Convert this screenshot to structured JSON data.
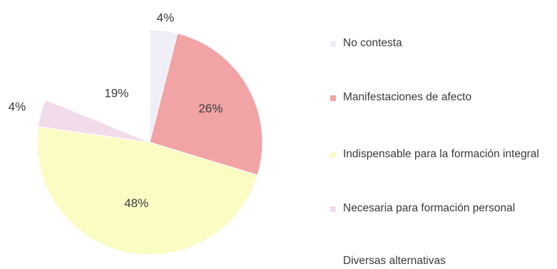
{
  "chart_data": {
    "type": "pie",
    "slices": [
      {
        "label": "No contesta",
        "value": 4,
        "value_label": "4%",
        "color": "#f0eef7"
      },
      {
        "label": "Manifestaciones de afecto",
        "value": 26,
        "value_label": "26%",
        "color": "#f2a3a5"
      },
      {
        "label": "Indispensable para la formación integral",
        "value": 48,
        "value_label": "48%",
        "color": "#fbfcc4"
      },
      {
        "label": "Necesaria para formación personal",
        "value": 4,
        "value_label": "4%",
        "color": "#f2dbea"
      },
      {
        "label": "Diversas alternativas",
        "value": 19,
        "value_label": "19%",
        "color": "#ffffff"
      }
    ],
    "legend_position": "right"
  }
}
